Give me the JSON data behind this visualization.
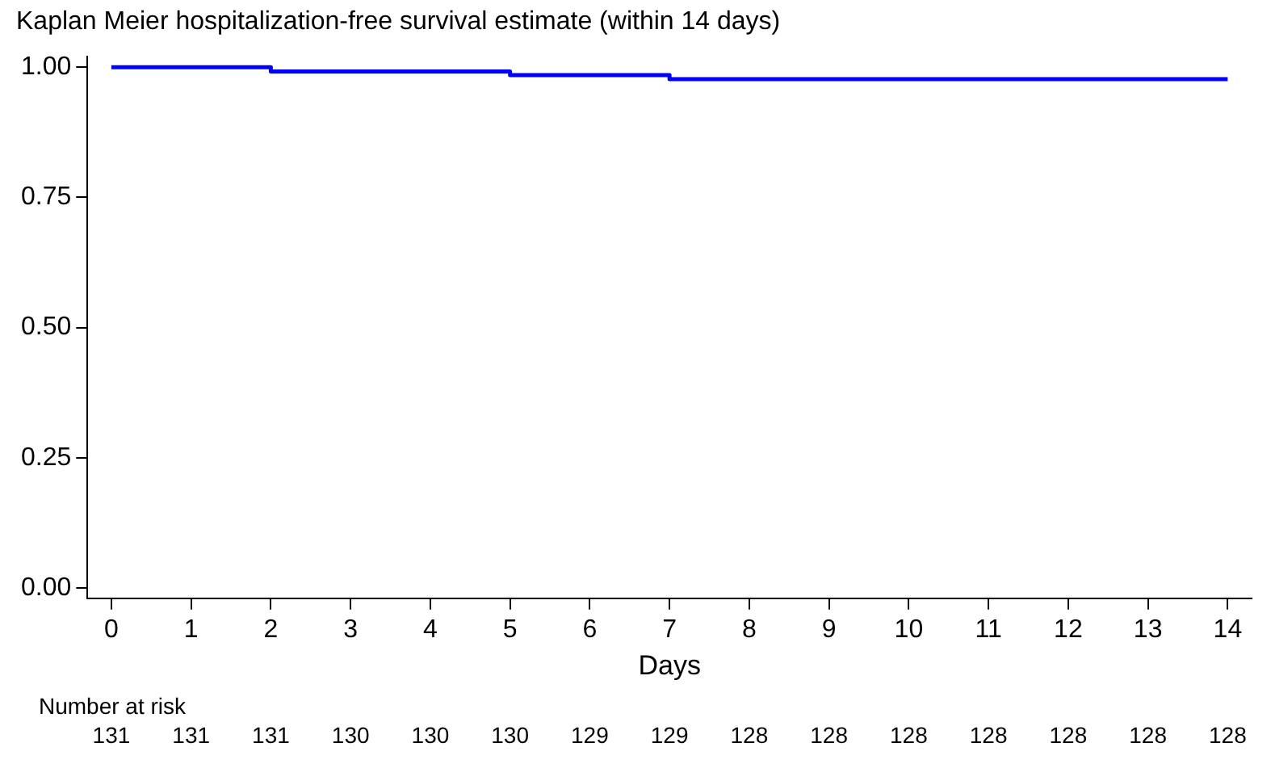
{
  "chart_data": {
    "type": "step",
    "title": "Kaplan Meier hospitalization-free survival estimate (within 14 days)",
    "xlabel": "Days",
    "x": [
      0,
      2,
      5,
      7,
      14
    ],
    "series": [
      {
        "color": "#0000ff",
        "values": [
          1,
          0.992,
          0.985,
          0.977,
          0.977
        ]
      }
    ],
    "xlim": [
      -0.3,
      14.3
    ],
    "xticks": [
      0,
      1,
      2,
      3,
      4,
      5,
      6,
      7,
      8,
      9,
      10,
      11,
      12,
      13,
      14
    ],
    "ylim": [
      -0.02,
      1.02
    ],
    "yticks": [
      {
        "value": 0,
        "label": "0.00"
      },
      {
        "value": 0.25,
        "label": "0.25"
      },
      {
        "value": 0.5,
        "label": "0.50"
      },
      {
        "value": 0.75,
        "label": "0.75"
      },
      {
        "value": 1,
        "label": "1.00"
      }
    ],
    "grid": false,
    "legend": false,
    "marker": "none",
    "annotations": [
      "Number at risk",
      "131",
      "131",
      "131",
      "130",
      "130",
      "130",
      "129",
      "129",
      "128",
      "128",
      "128",
      "128",
      "128",
      "128",
      "128"
    ]
  }
}
